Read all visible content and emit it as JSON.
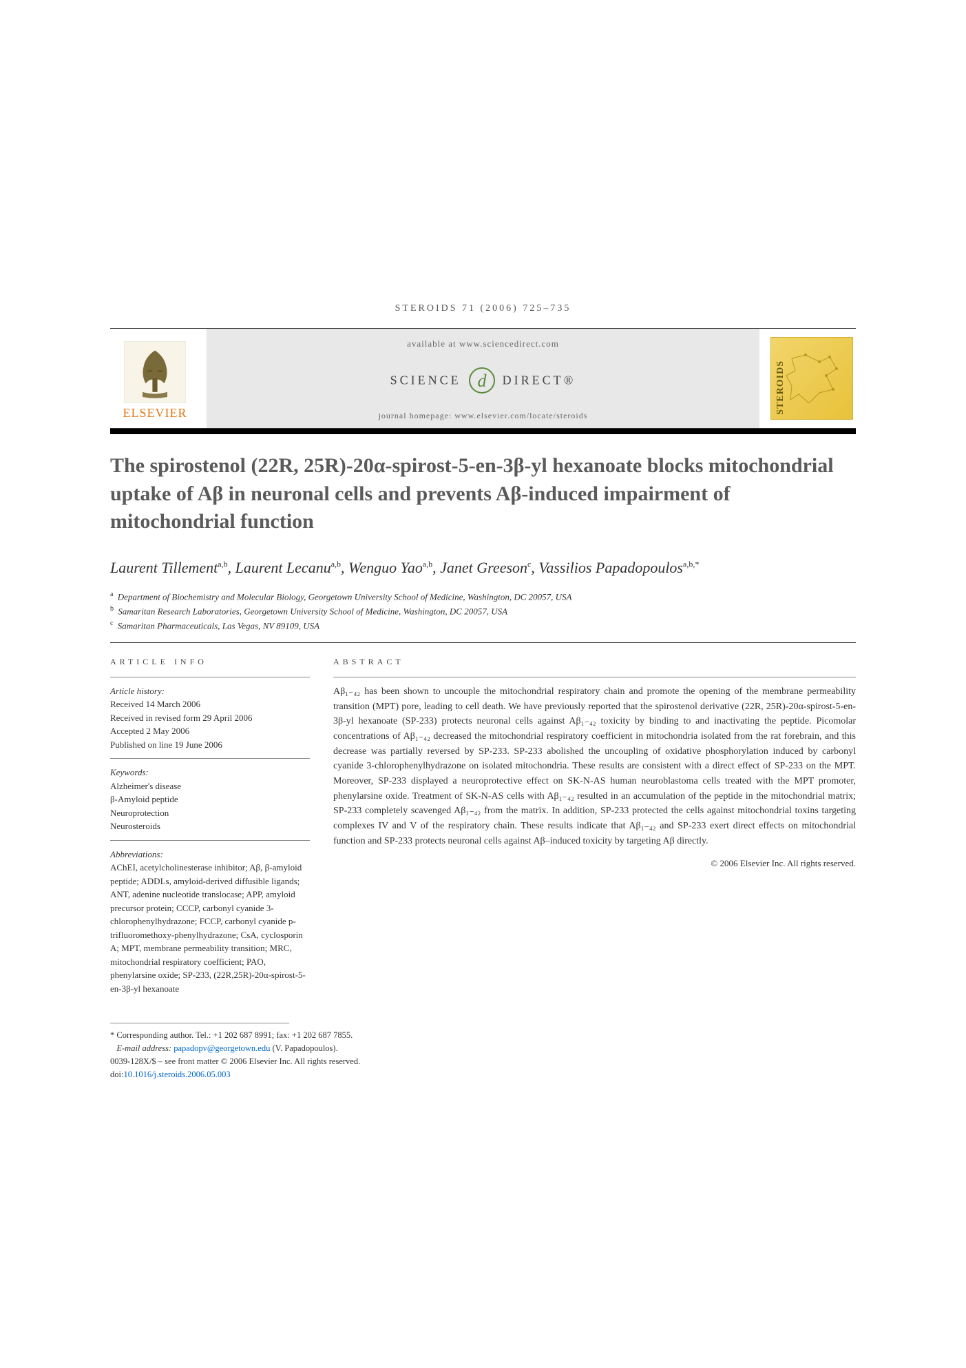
{
  "running_head": "steroids 71 (2006) 725–735",
  "header": {
    "available": "available at www.sciencedirect.com",
    "sd_left": "SCIENCE",
    "sd_right": "DIRECT®",
    "homepage": "journal homepage: www.elsevier.com/locate/steroids",
    "elsevier": "ELSEVIER",
    "cover_label": "STEROIDS"
  },
  "title": "The spirostenol (22R, 25R)-20α-spirost-5-en-3β-yl hexanoate blocks mitochondrial uptake of Aβ in neuronal cells and prevents Aβ-induced impairment of mitochondrial function",
  "authors_html": "Laurent Tillement<sup>a,b</sup>, Laurent Lecanu<sup>a,b</sup>, Wenguo Yao<sup>a,b</sup>, Janet Greeson<sup>c</sup>, Vassilios Papadopoulos<sup>a,b,*</sup>",
  "affiliations": [
    {
      "tag": "a",
      "text": "Department of Biochemistry and Molecular Biology, Georgetown University School of Medicine, Washington, DC 20057, USA"
    },
    {
      "tag": "b",
      "text": "Samaritan Research Laboratories, Georgetown University School of Medicine, Washington, DC 20057, USA"
    },
    {
      "tag": "c",
      "text": "Samaritan Pharmaceuticals, Las Vegas, NV 89109, USA"
    }
  ],
  "article_info": {
    "heading": "ARTICLE INFO",
    "history_label": "Article history:",
    "history": [
      "Received 14 March 2006",
      "Received in revised form 29 April 2006",
      "Accepted 2 May 2006",
      "Published on line 19 June 2006"
    ],
    "keywords_label": "Keywords:",
    "keywords": [
      "Alzheimer's disease",
      "β-Amyloid peptide",
      "Neuroprotection",
      "Neurosteroids"
    ],
    "abbrev_label": "Abbreviations:",
    "abbrev": "AChEI, acetylcholinesterase inhibitor; Aβ, β-amyloid peptide; ADDLs, amyloid-derived diffusible ligands; ANT, adenine nucleotide translocase; APP, amyloid precursor protein; CCCP, carbonyl cyanide 3-chlorophenylhydrazone; FCCP, carbonyl cyanide p-trifluoromethoxy-phenylhydrazone; CsA, cyclosporin A; MPT, membrane permeability transition; MRC, mitochondrial respiratory coefficient; PAO, phenylarsine oxide; SP-233, (22R,25R)-20α-spirost-5-en-3β-yl hexanoate"
  },
  "abstract": {
    "heading": "ABSTRACT",
    "text": "Aβ₁₋₄₂ has been shown to uncouple the mitochondrial respiratory chain and promote the opening of the membrane permeability transition (MPT) pore, leading to cell death. We have previously reported that the spirostenol derivative (22R, 25R)-20α-spirost-5-en-3β-yl hexanoate (SP-233) protects neuronal cells against Aβ₁₋₄₂ toxicity by binding to and inactivating the peptide. Picomolar concentrations of Aβ₁₋₄₂ decreased the mitochondrial respiratory coefficient in mitochondria isolated from the rat forebrain, and this decrease was partially reversed by SP-233. SP-233 abolished the uncoupling of oxidative phosphorylation induced by carbonyl cyanide 3-chlorophenylhydrazone on isolated mitochondria. These results are consistent with a direct effect of SP-233 on the MPT. Moreover, SP-233 displayed a neuroprotective effect on SK-N-AS human neuroblastoma cells treated with the MPT promoter, phenylarsine oxide. Treatment of SK-N-AS cells with Aβ₁₋₄₂ resulted in an accumulation of the peptide in the mitochondrial matrix; SP-233 completely scavenged Aβ₁₋₄₂ from the matrix. In addition, SP-233 protected the cells against mitochondrial toxins targeting complexes IV and V of the respiratory chain. These results indicate that Aβ₁₋₄₂ and SP-233 exert direct effects on mitochondrial function and SP-233 protects neuronal cells against Aβ–induced toxicity by targeting Aβ directly.",
    "copyright": "© 2006 Elsevier Inc. All rights reserved."
  },
  "footer": {
    "corresponding": "* Corresponding author. Tel.: +1 202 687 8991; fax: +1 202 687 7855.",
    "email_label": "E-mail address:",
    "email": "papadopv@georgetown.edu",
    "email_name": "(V. Papadopoulos).",
    "issn": "0039-128X/$ – see front matter © 2006 Elsevier Inc. All rights reserved.",
    "doi_label": "doi:",
    "doi": "10.1016/j.steroids.2006.05.003"
  },
  "colors": {
    "elsevier_orange": "#e47911",
    "band_bg": "#e8e8e8",
    "link_blue": "#0066cc",
    "sd_green": "#5b8a3c",
    "cover_yellow": "#e8c23a"
  }
}
